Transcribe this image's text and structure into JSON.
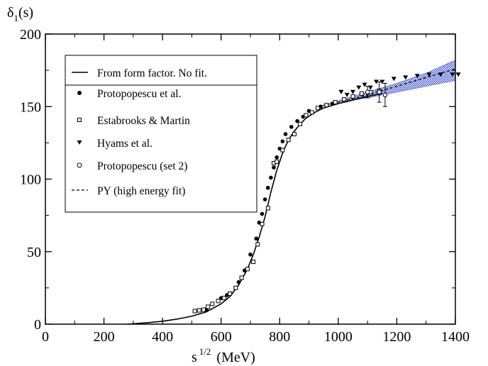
{
  "chart_data": {
    "type": "scatter",
    "ylabel": {
      "main": "δ",
      "sub": "1",
      "rest": "(s)"
    },
    "xlabel": {
      "main": "s",
      "sup": "1/2",
      "rest": "(MeV)"
    },
    "xlim": [
      0,
      1400
    ],
    "ylim": [
      0,
      200
    ],
    "xticks": [
      "0",
      "200",
      "400",
      "600",
      "800",
      "1000",
      "1200",
      "1400"
    ],
    "yticks": [
      "0",
      "50",
      "100",
      "150",
      "200"
    ],
    "grid": false,
    "legend_position": "top-left",
    "series": [
      {
        "name": "From form factor. No fit.",
        "kind": "line",
        "style": "solid",
        "color": "#000000",
        "x": [
          280,
          350,
          400,
          450,
          500,
          550,
          600,
          630,
          660,
          690,
          710,
          730,
          750,
          770,
          790,
          810,
          830,
          850,
          870,
          890,
          920,
          950,
          1000,
          1050,
          1100,
          1150
        ],
        "y": [
          0,
          1,
          2,
          3.5,
          5.5,
          8.5,
          14,
          19,
          27,
          38,
          48,
          60,
          74,
          91,
          106,
          118,
          127,
          133,
          138,
          142,
          146,
          149,
          152,
          154.5,
          157,
          159
        ]
      },
      {
        "name": "Protopopescu et al.",
        "kind": "points",
        "marker": "filled-circle",
        "color": "#000000",
        "x": [
          550,
          600,
          620,
          660,
          680,
          700,
          720,
          730,
          740,
          750,
          760,
          770,
          780,
          790,
          800,
          810,
          820,
          840,
          860,
          880,
          900,
          940,
          980
        ],
        "y": [
          10,
          18,
          20,
          29,
          37,
          48,
          59,
          70,
          76,
          86,
          94,
          101,
          108,
          115,
          121,
          126,
          131,
          136,
          140,
          143,
          147,
          150,
          152
        ]
      },
      {
        "name": "Estabrooks & Martin",
        "kind": "points",
        "marker": "open-square",
        "color": "#000000",
        "x": [
          510,
          525,
          540,
          555,
          570,
          590,
          610,
          630,
          650,
          670,
          690,
          710,
          725,
          740,
          760,
          780,
          790,
          810,
          830,
          850,
          870,
          890,
          910,
          930,
          960,
          990,
          1020,
          1050,
          1080,
          1110,
          1140
        ],
        "y": [
          9,
          9.5,
          10,
          12,
          14,
          16,
          18,
          21,
          25,
          32,
          38,
          43,
          55,
          69,
          80,
          111,
          112,
          120,
          127,
          131,
          138,
          144,
          146,
          149,
          151,
          153,
          155,
          157,
          159,
          160,
          161
        ]
      },
      {
        "name": "Hyams et al.",
        "kind": "points",
        "marker": "filled-triangle-down",
        "color": "#000000",
        "x": [
          1010,
          1030,
          1050,
          1070,
          1090,
          1110,
          1130,
          1150,
          1190,
          1230,
          1270,
          1310,
          1350,
          1390,
          1410
        ],
        "y": [
          160,
          158,
          160,
          163,
          165,
          163,
          167,
          167,
          169,
          170,
          171,
          172,
          172,
          172,
          172
        ]
      },
      {
        "name": "Protopopescu (set 2)",
        "kind": "points",
        "marker": "open-circle",
        "color": "#000000",
        "x": [
          1100,
          1140,
          1160
        ],
        "y": [
          160,
          160,
          158
        ],
        "yerr": [
          4,
          7,
          8
        ]
      },
      {
        "name": "PY (high energy fit)",
        "kind": "line",
        "style": "dashed",
        "color": "#000000",
        "x": [
          930,
          1000,
          1100,
          1200,
          1300,
          1400
        ],
        "y": [
          150,
          153,
          158,
          164,
          170,
          176
        ]
      },
      {
        "name": "",
        "kind": "band",
        "color": "#3a4fd0",
        "x": [
          1000,
          1100,
          1200,
          1300,
          1400
        ],
        "y_low": [
          153,
          156,
          160,
          164,
          168
        ],
        "y_high": [
          154,
          160,
          166,
          173,
          182
        ]
      }
    ]
  }
}
